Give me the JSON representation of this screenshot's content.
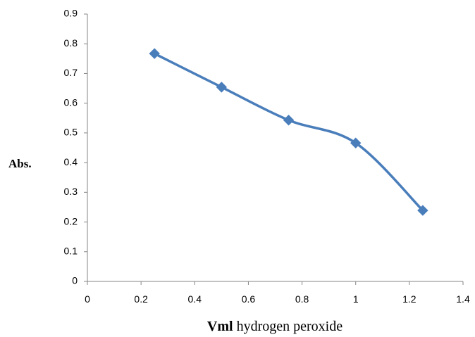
{
  "chart_data": {
    "type": "line",
    "x": [
      0.25,
      0.5,
      0.75,
      1.0,
      1.25
    ],
    "series": [
      {
        "values": [
          0.767,
          0.654,
          0.543,
          0.466,
          0.239
        ],
        "color": "#4A7EBB",
        "marker": "diamond",
        "smooth": true
      }
    ],
    "ylabel": "Abs.",
    "xlabel_bold": "Vml",
    "xlabel_rest": " hydrogen peroxide",
    "xlim": [
      0,
      1.4
    ],
    "ylim": [
      0,
      0.9
    ],
    "xticks": [
      "0",
      "0.2",
      "0.4",
      "0.6",
      "0.8",
      "1",
      "1.2",
      "1.4"
    ],
    "yticks": [
      "0",
      "0.1",
      "0.2",
      "0.3",
      "0.4",
      "0.5",
      "0.6",
      "0.7",
      "0.8",
      "0.9"
    ],
    "grid": false,
    "legend": "none"
  }
}
